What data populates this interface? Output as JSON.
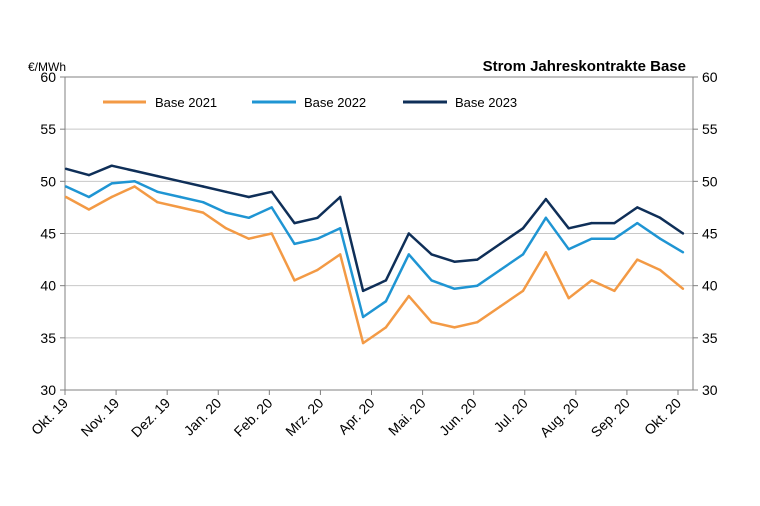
{
  "chart_data": {
    "type": "line",
    "title": "Strom Jahreskontrakte Base",
    "ylabel": "€/MWh",
    "xlabel": "",
    "ylim": [
      30,
      60
    ],
    "yticks": [
      30,
      35,
      40,
      45,
      50,
      55,
      60
    ],
    "grid": true,
    "legend_position": "top-left",
    "x_tick_labels": [
      "Okt. 19",
      "Nov. 19",
      "Dez. 19",
      "Jan. 20",
      "Feb. 20",
      "Mrz. 20",
      "Apr. 20",
      "Mai. 20",
      "Jun. 20",
      "Jul. 20",
      "Aug. 20",
      "Sep. 20",
      "Okt. 20"
    ],
    "x": [
      "Okt. 19",
      "Okt. 19",
      "Nov. 19",
      "Nov. 19",
      "Dez. 19",
      "Dez. 19",
      "Jan. 20",
      "Jan. 20",
      "Feb. 20",
      "Feb. 20",
      "Mrz. 20",
      "Mrz. 20",
      "Mrz. 20",
      "Apr. 20",
      "Apr. 20",
      "Apr. 20",
      "Mai. 20",
      "Mai. 20",
      "Jun. 20",
      "Jun. 20",
      "Jul. 20",
      "Jul. 20",
      "Aug. 20",
      "Aug. 20",
      "Sep. 20",
      "Sep. 20",
      "Okt. 20",
      "Okt. 20"
    ],
    "series": [
      {
        "name": "Base 2021",
        "color": "#f39a45",
        "values": [
          48.5,
          47.3,
          48.5,
          49.5,
          48.0,
          47.5,
          47.0,
          45.5,
          44.5,
          45.0,
          40.5,
          41.5,
          43.0,
          34.5,
          36.0,
          39.0,
          36.5,
          36.0,
          36.5,
          38.0,
          39.5,
          43.2,
          38.8,
          40.5,
          39.5,
          42.5,
          41.5,
          39.7
        ]
      },
      {
        "name": "Base 2022",
        "color": "#1f95d3",
        "values": [
          49.5,
          48.5,
          49.8,
          50.0,
          49.0,
          48.5,
          48.0,
          47.0,
          46.5,
          47.5,
          44.0,
          44.5,
          45.5,
          37.0,
          38.5,
          43.0,
          40.5,
          39.7,
          40.0,
          41.5,
          43.0,
          46.5,
          43.5,
          44.5,
          44.5,
          46.0,
          44.5,
          43.2
        ]
      },
      {
        "name": "Base 2023",
        "color": "#0f2f58",
        "values": [
          51.2,
          50.6,
          51.5,
          51.0,
          50.5,
          50.0,
          49.5,
          49.0,
          48.5,
          49.0,
          46.0,
          46.5,
          48.5,
          39.5,
          40.5,
          45.0,
          43.0,
          42.3,
          42.5,
          44.0,
          45.5,
          48.3,
          45.5,
          46.0,
          46.0,
          47.5,
          46.5,
          45.0
        ]
      }
    ]
  }
}
